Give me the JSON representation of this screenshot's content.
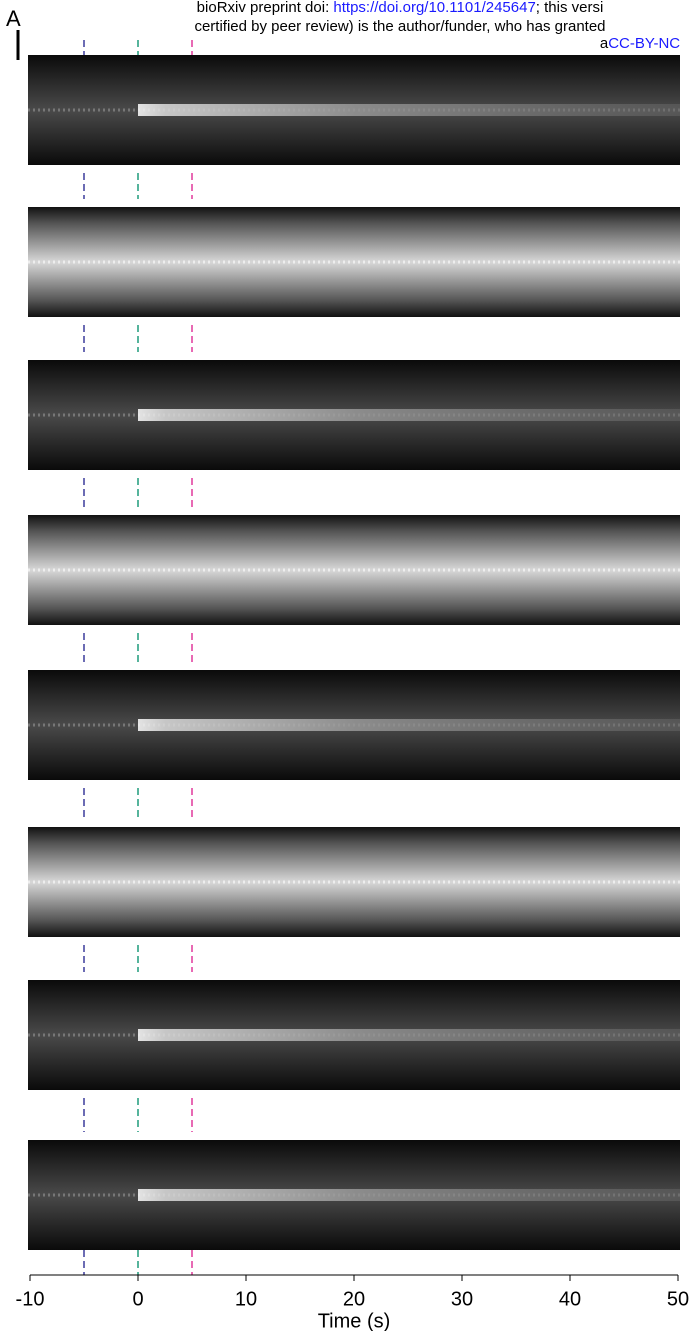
{
  "header": {
    "lines": [
      [
        "bioRxiv preprint doi: ",
        "https://doi.org/10.1101/245647",
        "; this versi"
      ],
      [
        "certified by peer review) is the author/funder, who has granted"
      ],
      [
        "a",
        "CC-BY-NC"
      ]
    ]
  },
  "panel_label": "A",
  "chart_data": {
    "type": "kymograph",
    "xlabel": "Time (s)",
    "xlim": [
      -10,
      50
    ],
    "xticks": [
      -10,
      0,
      10,
      20,
      30,
      40,
      50
    ],
    "markers": [
      {
        "x": -5,
        "color": "#3b3b9c"
      },
      {
        "x": 0,
        "color": "#1e9c7c"
      },
      {
        "x": 5,
        "color": "#e0389c"
      }
    ]
  }
}
